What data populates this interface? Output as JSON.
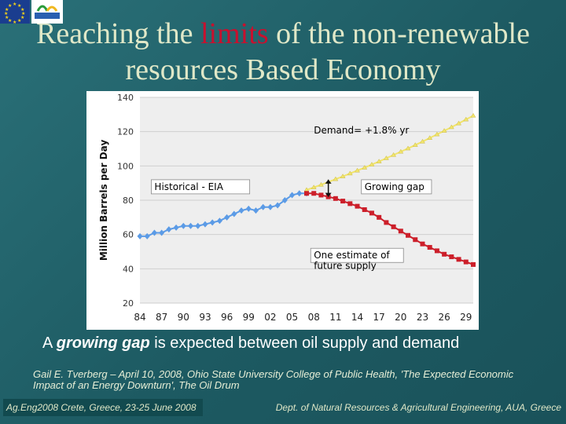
{
  "slide": {
    "title_part1": "Reaching the ",
    "title_highlight": "limits",
    "title_part2": " of the non-renewable resources Based Economy",
    "caption_pre": "A ",
    "caption_em": "growing gap",
    "caption_post": " is expected between oil supply and demand",
    "citation": "Gail E. Tverberg – April 10, 2008, Ohio State University College of Public Health, 'The Expected Economic Impact of an Energy Downturn', The Oil Drum",
    "footer_left": "Ag.Eng2008 Crete, Greece, 23-25 June 2008",
    "footer_right": "Dept. of Natural Resources & Agricultural Engineering, AUA, Greece",
    "colors": {
      "title": "#e0e8c8",
      "highlight": "#c8102e",
      "background": "#1f6168"
    }
  },
  "chart_data": {
    "type": "line",
    "ylabel": "Million Barrels per Day",
    "ylim": [
      20,
      140
    ],
    "yticks": [
      20,
      40,
      60,
      80,
      100,
      120,
      140
    ],
    "xlim": [
      1984,
      2030
    ],
    "xtick_labels": [
      "84",
      "87",
      "90",
      "93",
      "96",
      "99",
      "02",
      "05",
      "08",
      "11",
      "14",
      "17",
      "20",
      "23",
      "26",
      "29"
    ],
    "xtick_years": [
      1984,
      1987,
      1990,
      1993,
      1996,
      1999,
      2002,
      2005,
      2008,
      2011,
      2014,
      2017,
      2020,
      2023,
      2026,
      2029
    ],
    "series": [
      {
        "name": "Historical - EIA",
        "color": "#5b9be6",
        "x": [
          1984,
          1985,
          1986,
          1987,
          1988,
          1989,
          1990,
          1991,
          1992,
          1993,
          1994,
          1995,
          1996,
          1997,
          1998,
          1999,
          2000,
          2001,
          2002,
          2003,
          2004,
          2005,
          2006,
          2007
        ],
        "values": [
          59,
          59,
          61,
          61,
          63,
          64,
          65,
          65,
          65,
          66,
          67,
          68,
          70,
          72,
          74,
          75,
          74,
          76,
          76,
          77,
          80,
          83,
          84,
          84
        ]
      },
      {
        "name": "Demand= +1.8% yr",
        "color": "#f2e56b",
        "x": [
          2007,
          2008,
          2009,
          2010,
          2011,
          2012,
          2013,
          2014,
          2015,
          2016,
          2017,
          2018,
          2019,
          2020,
          2021,
          2022,
          2023,
          2024,
          2025,
          2026,
          2027,
          2028,
          2029,
          2030
        ],
        "values": [
          86,
          87.5,
          89,
          90.6,
          92.3,
          93.9,
          95.6,
          97.3,
          99,
          100.8,
          102.6,
          104.5,
          106.4,
          108.3,
          110.2,
          112.2,
          114.2,
          116.3,
          118.4,
          120.5,
          122.6,
          124.8,
          127.1,
          129.3
        ]
      },
      {
        "name": "One estimate of future supply",
        "color": "#cc1f2a",
        "x": [
          2007,
          2008,
          2009,
          2010,
          2011,
          2012,
          2013,
          2014,
          2015,
          2016,
          2017,
          2018,
          2019,
          2020,
          2021,
          2022,
          2023,
          2024,
          2025,
          2026,
          2027,
          2028,
          2029,
          2030
        ],
        "values": [
          84,
          84,
          83,
          82,
          81,
          79.5,
          78,
          76.5,
          74.5,
          72.5,
          70,
          67,
          64.5,
          62,
          59.5,
          57,
          54.5,
          52.5,
          50.5,
          48.5,
          47,
          45.5,
          44,
          42.5
        ]
      }
    ],
    "annotations": [
      {
        "text": "Demand= +1.8% yr",
        "x": 2008,
        "y": 119,
        "color": "#000000",
        "boxed": false
      },
      {
        "text": "Historical - EIA",
        "x": 1986,
        "y": 86,
        "color": "#000000",
        "boxed": true
      },
      {
        "text": "Growing gap",
        "x": 2015,
        "y": 86,
        "color": "#000000",
        "boxed": true
      },
      {
        "text": "One estimate of",
        "x": 2008,
        "y": 46,
        "color": "#000000",
        "boxed": true
      },
      {
        "text": "future supply",
        "x": 2008,
        "y": 40,
        "color": "#000000",
        "boxed": false
      }
    ]
  }
}
